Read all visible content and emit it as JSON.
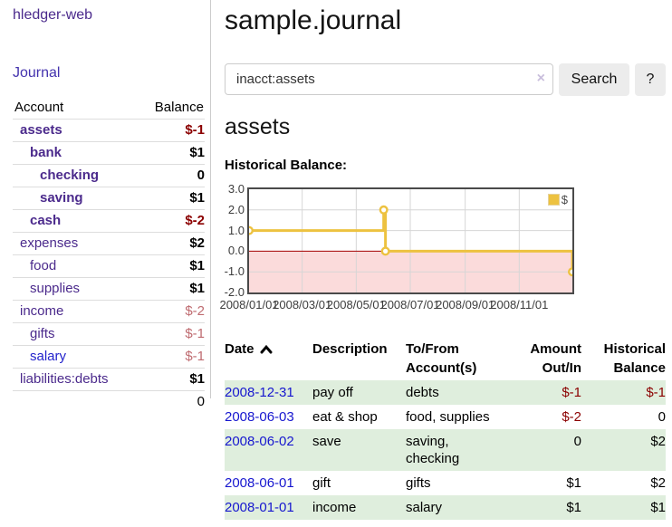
{
  "app": {
    "title": "hledger-web",
    "nav_journal": "Journal"
  },
  "sidebar": {
    "header": {
      "account": "Account",
      "balance": "Balance"
    },
    "accounts": [
      {
        "name": "assets",
        "level": 1,
        "bold": true,
        "balance": "$-1",
        "balance_style": "negative-strong"
      },
      {
        "name": "bank",
        "level": 2,
        "bold": true,
        "balance": "$1",
        "balance_style": "normal"
      },
      {
        "name": "checking",
        "level": 3,
        "bold": true,
        "balance": "0",
        "balance_style": "normal"
      },
      {
        "name": "saving",
        "level": 3,
        "bold": true,
        "balance": "$1",
        "balance_style": "normal"
      },
      {
        "name": "cash",
        "level": 2,
        "bold": true,
        "balance": "$-2",
        "balance_style": "negative-strong"
      },
      {
        "name": "expenses",
        "level": 1,
        "bold": false,
        "balance": "$2",
        "balance_style": "normal"
      },
      {
        "name": "food",
        "level": 2,
        "bold": false,
        "balance": "$1",
        "balance_style": "normal"
      },
      {
        "name": "supplies",
        "level": 2,
        "bold": false,
        "balance": "$1",
        "balance_style": "normal"
      },
      {
        "name": "income",
        "level": 1,
        "bold": false,
        "balance": "$-2",
        "balance_style": "negative-soft"
      },
      {
        "name": "gifts",
        "level": 2,
        "bold": false,
        "balance": "$-1",
        "balance_style": "negative-soft"
      },
      {
        "name": "salary",
        "level": 2,
        "bold": false,
        "balance": "$-1",
        "balance_style": "negative-soft",
        "link_color": "blue"
      },
      {
        "name": "liabilities:debts",
        "level": 1,
        "bold": false,
        "balance": "$1",
        "balance_style": "normal"
      }
    ],
    "total": "0"
  },
  "header": {
    "title": "sample.journal"
  },
  "search": {
    "value": "inacct:assets",
    "clear_icon": "×",
    "button": "Search",
    "help_button": "?"
  },
  "account_page": {
    "heading": "assets",
    "chart_label": "Historical Balance:"
  },
  "chart_data": {
    "type": "line",
    "title": "Historical Balance",
    "legend": [
      {
        "label": "$",
        "color": "#edc240"
      }
    ],
    "x_range": [
      "2008-01-01",
      "2008-12-31"
    ],
    "ylim": [
      -2,
      3
    ],
    "yticks": [
      3.0,
      2.0,
      1.0,
      0.0,
      -1.0,
      -2.0
    ],
    "xticks": [
      "2008/01/01",
      "2008/03/01",
      "2008/05/01",
      "2008/07/01",
      "2008/09/01",
      "2008/11/01"
    ],
    "series": [
      {
        "name": "$",
        "color": "#edc240",
        "steps": true,
        "points": [
          {
            "date": "2008-01-01",
            "value": 1
          },
          {
            "date": "2008-06-01",
            "value": 2
          },
          {
            "date": "2008-06-03",
            "value": 0
          },
          {
            "date": "2008-12-31",
            "value": -1
          }
        ]
      }
    ],
    "negative_region_color": "#fbdbdb",
    "zero_line_color": "#a40000",
    "grid_color": "#d6d6d6",
    "grid": true,
    "legend_position": "top-right"
  },
  "transactions": {
    "columns": {
      "date": "Date",
      "description": "Description",
      "tofrom_line1": "To/From",
      "tofrom_line2": "Account(s)",
      "amount_line1": "Amount",
      "amount_line2": "Out/In",
      "balance_line1": "Historical",
      "balance_line2": "Balance"
    },
    "rows": [
      {
        "date": "2008-12-31",
        "description": "pay off",
        "accounts": "debts",
        "amount": "$-1",
        "amount_negative": true,
        "balance": "$-1",
        "balance_negative": true,
        "shaded": true
      },
      {
        "date": "2008-06-03",
        "description": "eat & shop",
        "accounts": "food, supplies",
        "amount": "$-2",
        "amount_negative": true,
        "balance": "0",
        "balance_negative": false,
        "shaded": false
      },
      {
        "date": "2008-06-02",
        "description": "save",
        "accounts": "saving, checking",
        "amount": "0",
        "amount_negative": false,
        "balance": "$2",
        "balance_negative": false,
        "shaded": true
      },
      {
        "date": "2008-06-01",
        "description": "gift",
        "accounts": "gifts",
        "amount": "$1",
        "amount_negative": false,
        "balance": "$2",
        "balance_negative": false,
        "shaded": false
      },
      {
        "date": "2008-01-01",
        "description": "income",
        "accounts": "salary",
        "amount": "$1",
        "amount_negative": false,
        "balance": "$1",
        "balance_negative": false,
        "shaded": true
      }
    ]
  }
}
